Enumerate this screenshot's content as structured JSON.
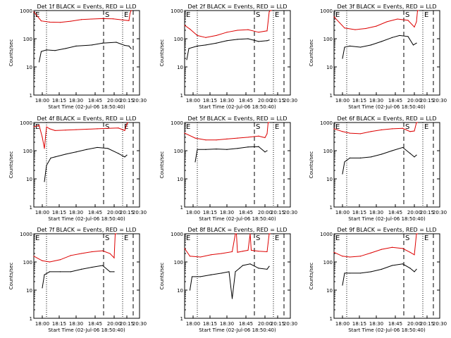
{
  "figure": {
    "ylabel": "Counts/sec",
    "xlabel": "Start Time (02-Jul-06 18:50:40)",
    "x_ticks": [
      "18:00",
      "18:15",
      "18:30",
      "18:45",
      "20:00",
      "20:15",
      "20:30"
    ],
    "y_ticks": [
      "1",
      "10",
      "100",
      "1000"
    ],
    "marker_S": "S",
    "marker_E": "E",
    "colors": {
      "events": "#000000",
      "lld": "#dd0000",
      "axes": "#000000"
    }
  },
  "chart_data": [
    {
      "type": "line",
      "title": "Det 1f BLACK = Events, RED = LLD",
      "ylim": [
        1,
        1000
      ],
      "yscale": "log",
      "grid": false,
      "series": [
        {
          "name": "Events",
          "x": [
            0.05,
            0.07,
            0.12,
            0.2,
            0.3,
            0.4,
            0.55,
            0.65,
            0.78,
            0.86,
            0.9,
            0.92
          ],
          "values": [
            15,
            35,
            40,
            38,
            45,
            55,
            60,
            70,
            75,
            58,
            55,
            45
          ]
        },
        {
          "name": "LLD",
          "x": [
            0.0,
            0.07,
            0.15,
            0.25,
            0.35,
            0.45,
            0.55,
            0.65,
            0.75,
            0.85,
            0.9,
            0.91,
            0.92,
            0.925
          ],
          "values": [
            900,
            430,
            390,
            380,
            420,
            480,
            500,
            520,
            510,
            460,
            440,
            800,
            1000,
            1000
          ]
        }
      ]
    },
    {
      "type": "line",
      "title": "Det 2f BLACK = Events, RED = LLD",
      "ylim": [
        1,
        1000
      ],
      "yscale": "log",
      "grid": false,
      "series": [
        {
          "name": "Events",
          "x": [
            0.02,
            0.04,
            0.12,
            0.2,
            0.3,
            0.4,
            0.5,
            0.6,
            0.7,
            0.78,
            0.8
          ],
          "values": [
            18,
            45,
            55,
            60,
            70,
            85,
            95,
            100,
            80,
            85,
            90
          ]
        },
        {
          "name": "LLD",
          "x": [
            0.0,
            0.05,
            0.12,
            0.2,
            0.3,
            0.4,
            0.5,
            0.6,
            0.7,
            0.78,
            0.8,
            0.81,
            0.82
          ],
          "values": [
            300,
            220,
            130,
            110,
            130,
            170,
            200,
            210,
            170,
            190,
            900,
            1000,
            1000
          ]
        }
      ]
    },
    {
      "type": "line",
      "title": "Det 3f BLACK = Events, RED = LLD",
      "ylim": [
        1,
        1000
      ],
      "yscale": "log",
      "grid": false,
      "series": [
        {
          "name": "Events",
          "x": [
            0.08,
            0.1,
            0.15,
            0.25,
            0.35,
            0.45,
            0.55,
            0.62,
            0.7,
            0.75,
            0.78
          ],
          "values": [
            20,
            50,
            55,
            50,
            60,
            80,
            110,
            130,
            120,
            60,
            70
          ]
        },
        {
          "name": "LLD",
          "x": [
            0.0,
            0.1,
            0.2,
            0.3,
            0.4,
            0.5,
            0.6,
            0.7,
            0.76,
            0.78,
            0.79,
            0.8
          ],
          "values": [
            600,
            240,
            210,
            230,
            280,
            400,
            500,
            450,
            260,
            400,
            1000,
            1000
          ]
        }
      ]
    },
    {
      "type": "line",
      "title": "Det 4f BLACK = Events, RED = LLD",
      "ylim": [
        1,
        1000
      ],
      "yscale": "log",
      "grid": false,
      "series": [
        {
          "name": "Events",
          "x": [
            0.1,
            0.12,
            0.16,
            0.2,
            0.3,
            0.4,
            0.5,
            0.6,
            0.7,
            0.8,
            0.86,
            0.88
          ],
          "values": [
            8,
            30,
            55,
            60,
            75,
            90,
            110,
            130,
            120,
            80,
            60,
            70
          ]
        },
        {
          "name": "LLD",
          "x": [
            0.0,
            0.05,
            0.08,
            0.1,
            0.12,
            0.15,
            0.2,
            0.3,
            0.4,
            0.5,
            0.6,
            0.7,
            0.8,
            0.86,
            0.88,
            0.89
          ],
          "values": [
            700,
            800,
            300,
            120,
            700,
            600,
            520,
            540,
            560,
            580,
            600,
            620,
            640,
            520,
            900,
            1000
          ]
        }
      ]
    },
    {
      "type": "line",
      "title": "Det 5f BLACK = Events, RED = LLD",
      "ylim": [
        1,
        1000
      ],
      "yscale": "log",
      "grid": false,
      "series": [
        {
          "name": "Events",
          "x": [
            0.1,
            0.12,
            0.2,
            0.3,
            0.4,
            0.5,
            0.6,
            0.7,
            0.76,
            0.78
          ],
          "values": [
            40,
            110,
            110,
            115,
            110,
            120,
            135,
            140,
            90,
            100
          ]
        },
        {
          "name": "LLD",
          "x": [
            0.0,
            0.1,
            0.2,
            0.3,
            0.4,
            0.5,
            0.6,
            0.7,
            0.76,
            0.78,
            0.79,
            0.8
          ],
          "values": [
            420,
            280,
            240,
            240,
            260,
            280,
            300,
            330,
            290,
            400,
            1000,
            1000
          ]
        }
      ]
    },
    {
      "type": "line",
      "title": "Det 6f BLACK = Events, RED = LLD",
      "ylim": [
        1,
        1000
      ],
      "yscale": "log",
      "grid": false,
      "series": [
        {
          "name": "Events",
          "x": [
            0.08,
            0.1,
            0.15,
            0.25,
            0.35,
            0.45,
            0.55,
            0.65,
            0.72,
            0.76,
            0.78
          ],
          "values": [
            15,
            40,
            55,
            55,
            60,
            75,
            100,
            130,
            80,
            60,
            70
          ]
        },
        {
          "name": "LLD",
          "x": [
            0.0,
            0.08,
            0.15,
            0.25,
            0.35,
            0.45,
            0.55,
            0.65,
            0.72,
            0.76,
            0.78,
            0.79
          ],
          "values": [
            600,
            480,
            420,
            400,
            480,
            550,
            600,
            620,
            480,
            500,
            1000,
            1000
          ]
        }
      ]
    },
    {
      "type": "line",
      "title": "Det 7f BLACK = Events, RED = LLD",
      "ylim": [
        1,
        1000
      ],
      "yscale": "log",
      "grid": false,
      "series": [
        {
          "name": "Events",
          "x": [
            0.08,
            0.1,
            0.15,
            0.25,
            0.35,
            0.45,
            0.55,
            0.65,
            0.72,
            0.76
          ],
          "values": [
            12,
            35,
            45,
            45,
            45,
            55,
            65,
            75,
            45,
            45
          ]
        },
        {
          "name": "LLD",
          "x": [
            0.0,
            0.08,
            0.15,
            0.25,
            0.35,
            0.45,
            0.55,
            0.65,
            0.72,
            0.76,
            0.77,
            0.78
          ],
          "values": [
            160,
            110,
            100,
            120,
            170,
            200,
            230,
            250,
            200,
            140,
            1000,
            1000
          ]
        }
      ]
    },
    {
      "type": "line",
      "title": "Det 8f BLACK = Events, RED = LLD",
      "ylim": [
        1,
        1000
      ],
      "yscale": "log",
      "grid": false,
      "series": [
        {
          "name": "Events",
          "x": [
            0.05,
            0.07,
            0.15,
            0.25,
            0.35,
            0.42,
            0.45,
            0.48,
            0.52,
            0.55,
            0.62,
            0.7,
            0.78,
            0.8
          ],
          "values": [
            10,
            30,
            30,
            35,
            40,
            45,
            5,
            45,
            60,
            75,
            85,
            60,
            55,
            70
          ]
        },
        {
          "name": "LLD",
          "x": [
            0.0,
            0.05,
            0.15,
            0.25,
            0.35,
            0.45,
            0.48,
            0.49,
            0.5,
            0.55,
            0.6,
            0.62,
            0.63,
            0.7,
            0.78,
            0.8,
            0.81
          ],
          "values": [
            300,
            160,
            150,
            180,
            200,
            230,
            1000,
            1000,
            220,
            240,
            260,
            1000,
            260,
            240,
            230,
            1000,
            1000
          ]
        }
      ]
    },
    {
      "type": "line",
      "title": "Det 9f BLACK = Events, RED = LLD",
      "ylim": [
        1,
        1000
      ],
      "yscale": "log",
      "grid": false,
      "series": [
        {
          "name": "Events",
          "x": [
            0.08,
            0.1,
            0.15,
            0.25,
            0.35,
            0.45,
            0.55,
            0.65,
            0.72,
            0.76,
            0.78
          ],
          "values": [
            15,
            40,
            40,
            40,
            45,
            55,
            75,
            85,
            60,
            45,
            55
          ]
        },
        {
          "name": "LLD",
          "x": [
            0.0,
            0.08,
            0.15,
            0.25,
            0.35,
            0.45,
            0.55,
            0.65,
            0.72,
            0.76,
            0.78,
            0.79
          ],
          "values": [
            220,
            160,
            150,
            160,
            210,
            280,
            330,
            300,
            220,
            180,
            1000,
            1000
          ]
        }
      ]
    }
  ]
}
